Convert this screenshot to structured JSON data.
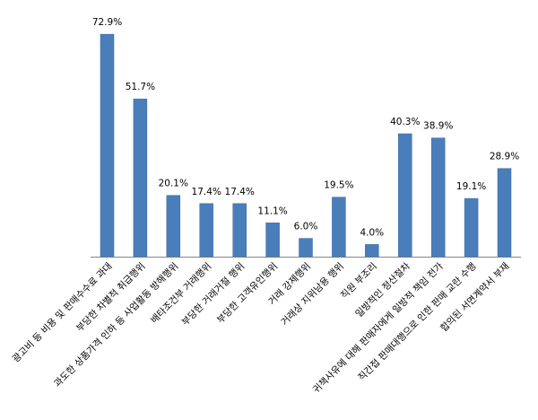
{
  "chart_data": {
    "type": "bar",
    "title": "",
    "xlabel": "",
    "ylabel": "",
    "ylim": [
      0,
      80
    ],
    "grid": false,
    "legend": "none",
    "bar_color": "#4a7ebb",
    "value_suffix": "%",
    "categories": [
      "광고비 등 비용 및 판매수수료 과대",
      "부당한 차별적 취급행위",
      "과도한 상품가격 인하 등 사업활동 방해행위",
      "배타조건부 거래행위",
      "부당한 거래거절 행위",
      "부당한 고객유인행위",
      "거래 강제행위",
      "거래상 지위남용 행위",
      "직원 부조리",
      "일방적인 정산절차",
      "귀책사유에 대해 판매자에게 일방적 책임 전가",
      "직간접 판매대행으로 인한 판매 교란 수행",
      "합의된 서면계약서 부재"
    ],
    "values": [
      72.9,
      51.7,
      20.1,
      17.4,
      17.4,
      11.1,
      6.0,
      19.5,
      4.0,
      40.3,
      38.9,
      19.1,
      28.9
    ],
    "labels": [
      "72.9%",
      "51.7%",
      "20.1%",
      "17.4%",
      "17.4%",
      "11.1%",
      "6.0%",
      "19.5%",
      "4.0%",
      "40.3%",
      "38.9%",
      "19.1%",
      "28.9%"
    ]
  }
}
